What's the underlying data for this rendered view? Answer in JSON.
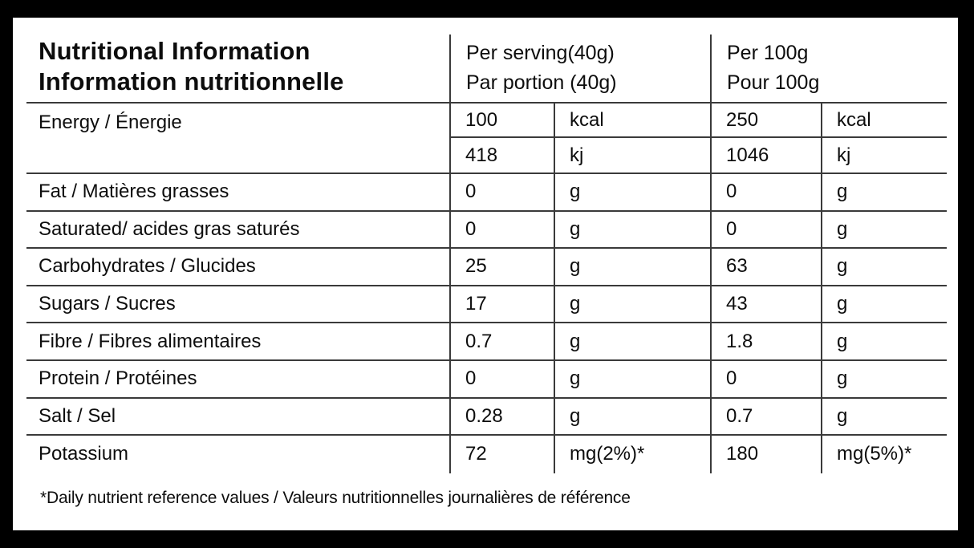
{
  "colors": {
    "frame_bg": "#000000",
    "panel_bg": "#ffffff",
    "line": "#3a3a3a",
    "text": "#0d0d0d"
  },
  "header": {
    "title_line1": "Nutritional Information",
    "title_line2": "Information nutritionnelle",
    "per_serving": {
      "line1": "Per serving(40g)",
      "line2": "Par portion (40g)"
    },
    "per_100g": {
      "line1": "Per 100g",
      "line2": "Pour 100g"
    }
  },
  "rows": [
    {
      "label": "Energy / Énergie",
      "sub": [
        {
          "serving_value": "100",
          "serving_unit": "kcal",
          "per100_value": "250",
          "per100_unit": "kcal"
        },
        {
          "serving_value": "418",
          "serving_unit": "kj",
          "per100_value": "1046",
          "per100_unit": "kj"
        }
      ]
    },
    {
      "label": "Fat / Matières grasses",
      "serving_value": "0",
      "serving_unit": "g",
      "per100_value": "0",
      "per100_unit": "g"
    },
    {
      "label": "Saturated/ acides gras saturés",
      "serving_value": "0",
      "serving_unit": "g",
      "per100_value": "0",
      "per100_unit": "g"
    },
    {
      "label": "Carbohydrates / Glucides",
      "serving_value": "25",
      "serving_unit": "g",
      "per100_value": "63",
      "per100_unit": "g"
    },
    {
      "label": "Sugars / Sucres",
      "serving_value": "17",
      "serving_unit": "g",
      "per100_value": "43",
      "per100_unit": "g"
    },
    {
      "label": "Fibre / Fibres alimentaires",
      "serving_value": "0.7",
      "serving_unit": "g",
      "per100_value": "1.8",
      "per100_unit": "g"
    },
    {
      "label": "Protein / Protéines",
      "serving_value": "0",
      "serving_unit": "g",
      "per100_value": "0",
      "per100_unit": "g"
    },
    {
      "label": "Salt / Sel",
      "serving_value": "0.28",
      "serving_unit": "g",
      "per100_value": "0.7",
      "per100_unit": "g"
    },
    {
      "label": "Potassium",
      "serving_value": "72",
      "serving_unit": "mg(2%)*",
      "per100_value": "180",
      "per100_unit": "mg(5%)*"
    }
  ],
  "footnote": "*Daily nutrient reference values / Valeurs nutritionnelles journalières de référence"
}
